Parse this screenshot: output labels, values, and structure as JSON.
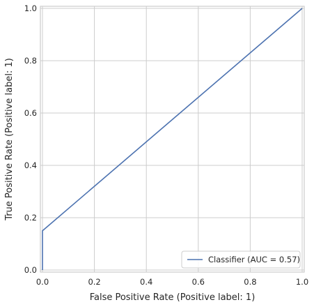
{
  "chart_data": {
    "type": "line",
    "title": "",
    "xlabel": "False Positive Rate (Positive label: 1)",
    "ylabel": "True Positive Rate (Positive label: 1)",
    "xlim": [
      0,
      1
    ],
    "ylim": [
      0,
      1
    ],
    "x_ticks": [
      0.0,
      0.2,
      0.4,
      0.6,
      0.8,
      1.0
    ],
    "y_ticks": [
      0.0,
      0.2,
      0.4,
      0.6,
      0.8,
      1.0
    ],
    "x_tick_labels": [
      "0.0",
      "0.2",
      "0.4",
      "0.6",
      "0.8",
      "1.0"
    ],
    "y_tick_labels": [
      "0.0",
      "0.2",
      "0.4",
      "0.6",
      "0.8",
      "1.0"
    ],
    "grid": true,
    "legend_position": "lower-right",
    "series": [
      {
        "name": "Classifier (AUC = 0.57)",
        "color": "#4c72b0",
        "x": [
          0.0,
          0.0,
          1.0
        ],
        "y": [
          0.0,
          0.15,
          1.0
        ]
      }
    ]
  },
  "colors": {
    "grid": "#cccccc",
    "spine": "#cccccc",
    "text": "#262626",
    "line": "#4c72b0"
  }
}
